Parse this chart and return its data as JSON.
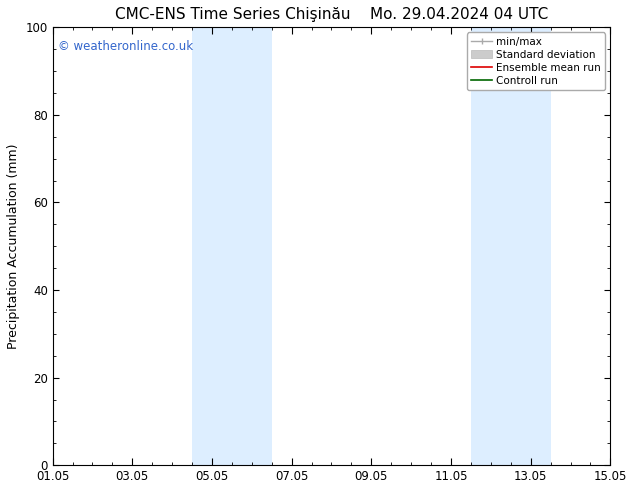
{
  "title_left": "CMC-ENS Time Series Chişinău",
  "title_right": "Mo. 29.04.2024 04 UTC",
  "ylabel": "Precipitation Accumulation (mm)",
  "ylim": [
    0,
    100
  ],
  "xlim": [
    0,
    14
  ],
  "xtick_labels": [
    "01.05",
    "03.05",
    "05.05",
    "07.05",
    "09.05",
    "11.05",
    "13.05",
    "15.05"
  ],
  "xtick_positions": [
    0,
    2,
    4,
    6,
    8,
    10,
    12,
    14
  ],
  "ytick_positions": [
    0,
    20,
    40,
    60,
    80,
    100
  ],
  "shaded_bands": [
    {
      "xmin": 3.5,
      "xmax": 5.5
    },
    {
      "xmin": 10.5,
      "xmax": 12.5
    }
  ],
  "shade_color": "#ddeeff",
  "background_color": "#ffffff",
  "watermark_text": "© weatheronline.co.uk",
  "watermark_color": "#3366cc",
  "legend_items": [
    {
      "label": "min/max",
      "color": "#aaaaaa",
      "lw": 1.0
    },
    {
      "label": "Standard deviation",
      "color": "#cccccc",
      "lw": 5
    },
    {
      "label": "Ensemble mean run",
      "color": "#dd0000",
      "lw": 1.2
    },
    {
      "label": "Controll run",
      "color": "#006600",
      "lw": 1.2
    }
  ],
  "title_fontsize": 11,
  "ylabel_fontsize": 9,
  "tick_fontsize": 8.5,
  "watermark_fontsize": 8.5,
  "legend_fontsize": 7.5
}
